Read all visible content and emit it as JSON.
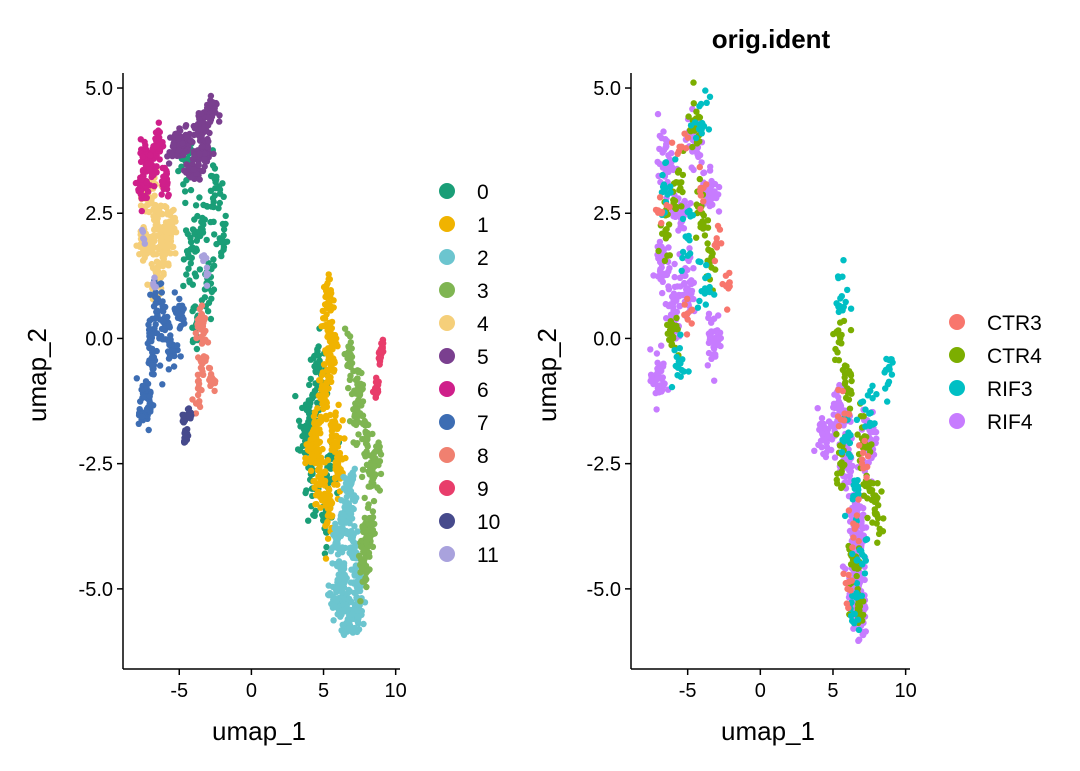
{
  "chart_data": [
    {
      "type": "scatter",
      "title": "",
      "xlabel": "umap_1",
      "ylabel": "umap_2",
      "xlim": [
        -8.9,
        10.3
      ],
      "ylim": [
        -6.6,
        5.3
      ],
      "xticks": [
        -5,
        0,
        5,
        10
      ],
      "xtick_labels": [
        "-5",
        "0",
        "5",
        "10"
      ],
      "yticks": [
        -5,
        -2.5,
        0,
        2.5,
        5
      ],
      "ytick_labels": [
        "-5.0",
        "-2.5",
        "0.0",
        "2.5",
        "5.0"
      ],
      "legend_position": "right",
      "legend": [
        {
          "label": "0",
          "color": "#1a9e77"
        },
        {
          "label": "1",
          "color": "#f0b300"
        },
        {
          "label": "2",
          "color": "#6cc5cf"
        },
        {
          "label": "3",
          "color": "#7fb552"
        },
        {
          "label": "4",
          "color": "#f5cf7a"
        },
        {
          "label": "5",
          "color": "#7a3f8f"
        },
        {
          "label": "6",
          "color": "#cf1f8a"
        },
        {
          "label": "7",
          "color": "#3d6db3"
        },
        {
          "label": "8",
          "color": "#f08070"
        },
        {
          "label": "9",
          "color": "#e83d6b"
        },
        {
          "label": "10",
          "color": "#464a8c"
        },
        {
          "label": "11",
          "color": "#a9a2dd"
        }
      ],
      "series": [
        {
          "name": "0",
          "color": "#1a9e77",
          "points": [
            [
              -4.5,
              3.5
            ],
            [
              -3.5,
              2.2
            ],
            [
              -3.0,
              1.0
            ],
            [
              -2.5,
              3.0
            ],
            [
              -4.2,
              1.5
            ],
            [
              -2.2,
              2.0
            ],
            [
              -3.8,
              0.3
            ],
            [
              4.0,
              -1.5
            ],
            [
              4.5,
              -0.5
            ],
            [
              3.8,
              -2.0
            ],
            [
              5.5,
              -2.6
            ],
            [
              4.8,
              -1.0
            ],
            [
              5.2,
              -3.5
            ],
            [
              4.2,
              -3.0
            ]
          ],
          "spread": [
            0.5,
            0.55
          ],
          "n": 22
        },
        {
          "name": "1",
          "color": "#f0b300",
          "points": [
            [
              5.3,
              0.7
            ],
            [
              5.5,
              -0.5
            ],
            [
              5.0,
              -1.2
            ],
            [
              4.5,
              -2.0
            ],
            [
              5.8,
              -1.8
            ],
            [
              4.8,
              -2.8
            ],
            [
              5.3,
              -3.4
            ],
            [
              6.0,
              -2.5
            ],
            [
              4.2,
              -2.4
            ],
            [
              5.5,
              0.0
            ]
          ],
          "spread": [
            0.4,
            0.45
          ],
          "n": 34
        },
        {
          "name": "2",
          "color": "#6cc5cf",
          "points": [
            [
              6.5,
              -5.2
            ],
            [
              6.8,
              -5.6
            ],
            [
              6.2,
              -4.7
            ],
            [
              7.0,
              -4.2
            ],
            [
              6.6,
              -3.6
            ],
            [
              5.8,
              -5.2
            ],
            [
              7.4,
              -4.9
            ],
            [
              6.0,
              -4.0
            ],
            [
              6.8,
              -3.0
            ],
            [
              7.3,
              -5.5
            ]
          ],
          "spread": [
            0.4,
            0.35
          ],
          "n": 34
        },
        {
          "name": "3",
          "color": "#7fb552",
          "points": [
            [
              6.8,
              -0.3
            ],
            [
              7.4,
              -1.0
            ],
            [
              8.0,
              -2.0
            ],
            [
              8.4,
              -2.8
            ],
            [
              8.2,
              -3.8
            ],
            [
              7.8,
              -4.6
            ],
            [
              7.3,
              -1.6
            ],
            [
              8.6,
              -2.4
            ],
            [
              7.9,
              -4.0
            ]
          ],
          "spread": [
            0.35,
            0.4
          ],
          "n": 26
        },
        {
          "name": "4",
          "color": "#f5cf7a",
          "points": [
            [
              -6.5,
              2.4
            ],
            [
              -7.0,
              2.8
            ],
            [
              -6.0,
              1.8
            ],
            [
              -7.4,
              1.9
            ],
            [
              -6.6,
              1.3
            ],
            [
              -5.6,
              2.2
            ]
          ],
          "spread": [
            0.45,
            0.45
          ],
          "n": 34
        },
        {
          "name": "5",
          "color": "#7a3f8f",
          "points": [
            [
              -4.5,
              4.0
            ],
            [
              -3.5,
              4.2
            ],
            [
              -3.0,
              4.5
            ],
            [
              -5.3,
              3.8
            ],
            [
              -4.0,
              3.4
            ],
            [
              -3.2,
              3.7
            ]
          ],
          "spread": [
            0.5,
            0.3
          ],
          "n": 32
        },
        {
          "name": "6",
          "color": "#cf1f8a",
          "points": [
            [
              -7.0,
              3.4
            ],
            [
              -6.5,
              3.9
            ],
            [
              -7.5,
              3.0
            ],
            [
              -6.0,
              3.2
            ],
            [
              -7.3,
              3.6
            ]
          ],
          "spread": [
            0.35,
            0.35
          ],
          "n": 30
        },
        {
          "name": "7",
          "color": "#3d6db3",
          "points": [
            [
              -6.8,
              -0.5
            ],
            [
              -7.2,
              -1.2
            ],
            [
              -6.0,
              0.3
            ],
            [
              -5.5,
              -0.2
            ],
            [
              -7.5,
              -1.5
            ],
            [
              -6.5,
              0.8
            ],
            [
              -5.0,
              0.5
            ],
            [
              -7.0,
              0.1
            ]
          ],
          "spread": [
            0.4,
            0.35
          ],
          "n": 22
        },
        {
          "name": "8",
          "color": "#f08070",
          "points": [
            [
              -3.6,
              0.4
            ],
            [
              -3.4,
              -0.5
            ],
            [
              -3.7,
              -1.0
            ],
            [
              -3.3,
              0.1
            ],
            [
              -2.7,
              -0.8
            ]
          ],
          "spread": [
            0.25,
            0.3
          ],
          "n": 14
        },
        {
          "name": "9",
          "color": "#e83d6b",
          "points": [
            [
              8.9,
              -0.4
            ],
            [
              8.7,
              -0.9
            ],
            [
              9.1,
              -0.2
            ],
            [
              8.6,
              -1.1
            ]
          ],
          "spread": [
            0.12,
            0.2
          ],
          "n": 10
        },
        {
          "name": "10",
          "color": "#464a8c",
          "points": [
            [
              -4.7,
              -1.6
            ],
            [
              -4.5,
              -1.9
            ],
            [
              -4.3,
              -1.5
            ],
            [
              -4.6,
              -2.0
            ]
          ],
          "spread": [
            0.1,
            0.12
          ],
          "n": 10
        },
        {
          "name": "11",
          "color": "#a9a2dd",
          "points": [
            [
              -3.1,
              1.3
            ],
            [
              -3.3,
              1.6
            ],
            [
              -6.8,
              1.1
            ],
            [
              -7.5,
              2.0
            ]
          ],
          "spread": [
            0.15,
            0.2
          ],
          "n": 4
        }
      ]
    },
    {
      "type": "scatter",
      "title": "orig.ident",
      "xlabel": "umap_1",
      "ylabel": "umap_2",
      "xlim": [
        -8.9,
        10.3
      ],
      "ylim": [
        -6.6,
        5.3
      ],
      "xticks": [
        -5,
        0,
        5,
        10
      ],
      "xtick_labels": [
        "-5",
        "0",
        "5",
        "10"
      ],
      "yticks": [
        -5,
        -2.5,
        0,
        2.5,
        5
      ],
      "ytick_labels": [
        "-5.0",
        "-2.5",
        "0.0",
        "2.5",
        "5.0"
      ],
      "legend_position": "right",
      "legend": [
        {
          "label": "CTR3",
          "color": "#f8766d"
        },
        {
          "label": "CTR4",
          "color": "#7cae00"
        },
        {
          "label": "RIF3",
          "color": "#00bfc4"
        },
        {
          "label": "RIF4",
          "color": "#c77cff"
        }
      ],
      "series": [
        {
          "name": "RIF4",
          "color": "#c77cff",
          "points": [
            [
              -6.5,
              3.5
            ],
            [
              -5.5,
              2.5
            ],
            [
              -6.8,
              1.5
            ],
            [
              -4.5,
              4.0
            ],
            [
              -6.0,
              0.5
            ],
            [
              -7.0,
              -0.8
            ],
            [
              -3.5,
              3.0
            ],
            [
              -5.0,
              1.0
            ],
            [
              -3.2,
              0.0
            ],
            [
              6.0,
              -2.5
            ],
            [
              6.5,
              -3.5
            ],
            [
              6.5,
              -4.8
            ],
            [
              6.8,
              -5.5
            ],
            [
              5.5,
              -1.5
            ],
            [
              7.5,
              -2.0
            ],
            [
              4.5,
              -2.0
            ],
            [
              6.8,
              -4.0
            ]
          ],
          "spread": [
            0.5,
            0.5
          ],
          "n": 40
        },
        {
          "name": "CTR4",
          "color": "#7cae00",
          "points": [
            [
              -5.5,
              3.0
            ],
            [
              -6.5,
              2.0
            ],
            [
              -4.0,
              2.5
            ],
            [
              -6.0,
              0.0
            ],
            [
              -4.5,
              4.2
            ],
            [
              -3.5,
              1.5
            ],
            [
              6.0,
              -1.0
            ],
            [
              7.5,
              -3.0
            ],
            [
              6.5,
              -4.5
            ],
            [
              5.5,
              -2.5
            ],
            [
              8.0,
              -3.5
            ],
            [
              6.8,
              -5.2
            ],
            [
              5.5,
              0.0
            ],
            [
              7.0,
              -2.0
            ]
          ],
          "spread": [
            0.45,
            0.5
          ],
          "n": 18
        },
        {
          "name": "RIF3",
          "color": "#00bfc4",
          "points": [
            [
              -5.0,
              2.0
            ],
            [
              -6.5,
              3.0
            ],
            [
              -4.0,
              4.3
            ],
            [
              -5.5,
              -0.5
            ],
            [
              -3.8,
              1.0
            ],
            [
              6.0,
              -2.0
            ],
            [
              7.0,
              -4.5
            ],
            [
              6.5,
              -3.0
            ],
            [
              5.5,
              0.8
            ],
            [
              8.8,
              -0.6
            ],
            [
              6.5,
              -5.5
            ],
            [
              7.5,
              -1.5
            ]
          ],
          "spread": [
            0.5,
            0.5
          ],
          "n": 14
        },
        {
          "name": "CTR3",
          "color": "#f8766d",
          "points": [
            [
              -5.5,
              3.8
            ],
            [
              -6.8,
              2.5
            ],
            [
              -4.0,
              3.0
            ],
            [
              -3.0,
              2.0
            ],
            [
              -2.2,
              1.0
            ],
            [
              -5.0,
              0.5
            ],
            [
              6.5,
              -3.8
            ],
            [
              7.0,
              -2.5
            ],
            [
              6.0,
              -5.0
            ],
            [
              5.8,
              -1.5
            ]
          ],
          "spread": [
            0.45,
            0.45
          ],
          "n": 8
        }
      ]
    }
  ]
}
